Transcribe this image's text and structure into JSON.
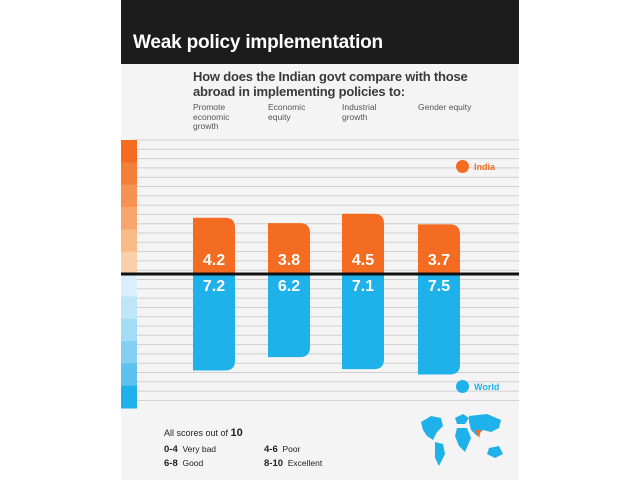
{
  "title": "Weak policy implementation",
  "subtitle": "How does the Indian govt compare with those abroad in implementing policies to:",
  "colors": {
    "india": "#f36c21",
    "world": "#1fb1ea",
    "header": "#1c1c1c"
  },
  "legend": {
    "india": "India",
    "world": "World"
  },
  "footer": {
    "note_prefix": "All scores out of",
    "note_value": "10",
    "scale": [
      {
        "range": "0-4",
        "label": "Very bad"
      },
      {
        "range": "4-6",
        "label": "Poor"
      },
      {
        "range": "6-8",
        "label": "Good"
      },
      {
        "range": "8-10",
        "label": "Excellent"
      }
    ]
  },
  "chart_data": {
    "type": "bar",
    "categories": [
      "Promote economic growth",
      "Economic equity",
      "Industrial growth",
      "Gender equity"
    ],
    "series": [
      {
        "name": "India",
        "values": [
          4.2,
          3.8,
          4.5,
          3.7
        ]
      },
      {
        "name": "World",
        "values": [
          7.2,
          6.2,
          7.1,
          7.5
        ]
      }
    ],
    "ylim": [
      0,
      10
    ],
    "legend": "right",
    "grid": true
  }
}
